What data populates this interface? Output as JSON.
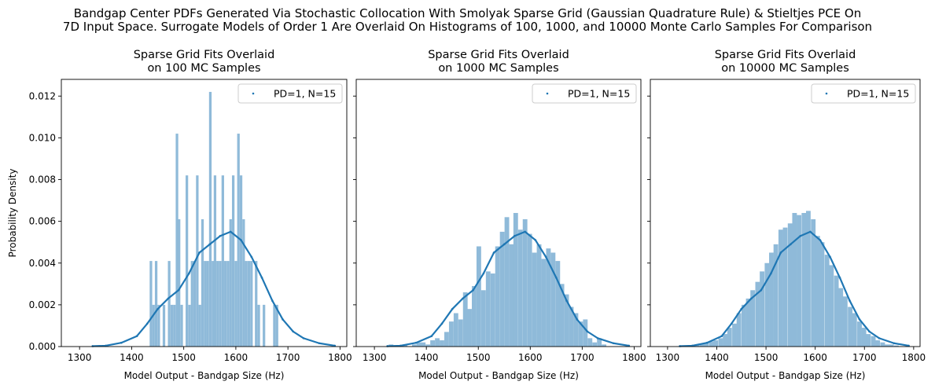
{
  "figure": {
    "suptitle_line1": "Bandgap Center PDFs Generated Via Stochastic Collocation With Smolyak Sparse Grid (Gaussian Quadrature Rule) & Stieltjes PCE On",
    "suptitle_line2": "7D Input Space. Surrogate Models of Order 1 Are Overlaid On Histograms of 100, 1000, and 10000 Monte Carlo Samples For Comparison"
  },
  "colors": {
    "hist": "#8fbad9",
    "curve": "#1f77b4",
    "axis": "#000000",
    "legend_border": "#cccccc"
  },
  "chart_data": [
    {
      "type": "bar",
      "title_line1": "Sparse Grid Fits Overlaid",
      "title_line2": "on 100 MC Samples",
      "xlabel": "Model Output - Bandgap Size (Hz)",
      "ylabel": "Probability Density",
      "xlim": [
        1265,
        1813
      ],
      "ylim": [
        0,
        0.0128
      ],
      "xticks": [
        1300,
        1400,
        1500,
        1600,
        1700,
        1800
      ],
      "yticks": [
        0.0,
        0.002,
        0.004,
        0.006,
        0.008,
        0.01,
        0.012
      ],
      "ytick_labels": [
        "0.000",
        "0.002",
        "0.004",
        "0.006",
        "0.008",
        "0.010",
        "0.012"
      ],
      "show_ytick_labels": true,
      "legend": {
        "label": "PD=1, N=15",
        "placement": "top-right"
      },
      "bin_width": 4.91,
      "bins": [
        {
          "x": 1437,
          "y": 0.0041
        },
        {
          "x": 1442,
          "y": 0.002
        },
        {
          "x": 1447,
          "y": 0.0041
        },
        {
          "x": 1452,
          "y": 0.002
        },
        {
          "x": 1462,
          "y": 0.002
        },
        {
          "x": 1472,
          "y": 0.0041
        },
        {
          "x": 1477,
          "y": 0.002
        },
        {
          "x": 1482,
          "y": 0.002
        },
        {
          "x": 1487,
          "y": 0.0102
        },
        {
          "x": 1491,
          "y": 0.0061
        },
        {
          "x": 1496,
          "y": 0.002
        },
        {
          "x": 1506,
          "y": 0.0082
        },
        {
          "x": 1511,
          "y": 0.002
        },
        {
          "x": 1516,
          "y": 0.0041
        },
        {
          "x": 1521,
          "y": 0.0041
        },
        {
          "x": 1526,
          "y": 0.0082
        },
        {
          "x": 1531,
          "y": 0.002
        },
        {
          "x": 1536,
          "y": 0.0061
        },
        {
          "x": 1541,
          "y": 0.0041
        },
        {
          "x": 1546,
          "y": 0.0041
        },
        {
          "x": 1551,
          "y": 0.0122
        },
        {
          "x": 1556,
          "y": 0.0041
        },
        {
          "x": 1560,
          "y": 0.0082
        },
        {
          "x": 1565,
          "y": 0.0041
        },
        {
          "x": 1570,
          "y": 0.0041
        },
        {
          "x": 1575,
          "y": 0.0082
        },
        {
          "x": 1580,
          "y": 0.0041
        },
        {
          "x": 1585,
          "y": 0.0041
        },
        {
          "x": 1590,
          "y": 0.0061
        },
        {
          "x": 1595,
          "y": 0.0082
        },
        {
          "x": 1600,
          "y": 0.0041
        },
        {
          "x": 1605,
          "y": 0.0102
        },
        {
          "x": 1610,
          "y": 0.0082
        },
        {
          "x": 1615,
          "y": 0.0061
        },
        {
          "x": 1620,
          "y": 0.0041
        },
        {
          "x": 1625,
          "y": 0.0041
        },
        {
          "x": 1630,
          "y": 0.0041
        },
        {
          "x": 1639,
          "y": 0.0041
        },
        {
          "x": 1644,
          "y": 0.002
        },
        {
          "x": 1654,
          "y": 0.002
        },
        {
          "x": 1674,
          "y": 0.002
        },
        {
          "x": 1679,
          "y": 0.002
        }
      ],
      "curve": {
        "x": [
          1325,
          1350,
          1380,
          1410,
          1430,
          1450,
          1470,
          1490,
          1510,
          1530,
          1550,
          1570,
          1590,
          1610,
          1630,
          1650,
          1670,
          1690,
          1710,
          1730,
          1760,
          1790
        ],
        "y": [
          2e-05,
          4e-05,
          0.00018,
          0.0005,
          0.0011,
          0.0018,
          0.0023,
          0.0027,
          0.0035,
          0.0045,
          0.0049,
          0.0053,
          0.0055,
          0.0051,
          0.0043,
          0.0033,
          0.0022,
          0.0013,
          0.00072,
          0.0004,
          0.00016,
          4e-05
        ]
      }
    },
    {
      "type": "bar",
      "title_line1": "Sparse Grid Fits Overlaid",
      "title_line2": "on 1000 MC Samples",
      "xlabel": "Model Output - Bandgap Size (Hz)",
      "ylabel": "",
      "xlim": [
        1265,
        1813
      ],
      "ylim": [
        0,
        0.0128
      ],
      "xticks": [
        1300,
        1400,
        1500,
        1600,
        1700,
        1800
      ],
      "yticks": [
        0.0,
        0.002,
        0.004,
        0.006,
        0.008,
        0.01,
        0.012
      ],
      "ytick_labels": [
        "",
        "",
        "",
        "",
        "",
        "",
        ""
      ],
      "show_ytick_labels": false,
      "legend": {
        "label": "PD=1, N=15",
        "placement": "top-right"
      },
      "bin_width": 8.9,
      "bins": [
        {
          "x": 1332,
          "y": 0.0001
        },
        {
          "x": 1359,
          "y": 0.0001
        },
        {
          "x": 1377,
          "y": 0.0001
        },
        {
          "x": 1386,
          "y": 0.0002
        },
        {
          "x": 1394,
          "y": 0.0002
        },
        {
          "x": 1403,
          "y": 0.0001
        },
        {
          "x": 1412,
          "y": 0.0003
        },
        {
          "x": 1421,
          "y": 0.0004
        },
        {
          "x": 1430,
          "y": 0.0003
        },
        {
          "x": 1439,
          "y": 0.0007
        },
        {
          "x": 1448,
          "y": 0.0012
        },
        {
          "x": 1457,
          "y": 0.0016
        },
        {
          "x": 1466,
          "y": 0.0013
        },
        {
          "x": 1475,
          "y": 0.0026
        },
        {
          "x": 1483,
          "y": 0.0018
        },
        {
          "x": 1492,
          "y": 0.0029
        },
        {
          "x": 1501,
          "y": 0.0048
        },
        {
          "x": 1510,
          "y": 0.0027
        },
        {
          "x": 1519,
          "y": 0.0036
        },
        {
          "x": 1528,
          "y": 0.0035
        },
        {
          "x": 1537,
          "y": 0.0048
        },
        {
          "x": 1546,
          "y": 0.0055
        },
        {
          "x": 1555,
          "y": 0.0062
        },
        {
          "x": 1564,
          "y": 0.0049
        },
        {
          "x": 1572,
          "y": 0.0064
        },
        {
          "x": 1581,
          "y": 0.0056
        },
        {
          "x": 1590,
          "y": 0.0061
        },
        {
          "x": 1599,
          "y": 0.0054
        },
        {
          "x": 1608,
          "y": 0.0045
        },
        {
          "x": 1617,
          "y": 0.0049
        },
        {
          "x": 1626,
          "y": 0.0042
        },
        {
          "x": 1635,
          "y": 0.0047
        },
        {
          "x": 1644,
          "y": 0.0045
        },
        {
          "x": 1653,
          "y": 0.0041
        },
        {
          "x": 1661,
          "y": 0.003
        },
        {
          "x": 1670,
          "y": 0.0025
        },
        {
          "x": 1679,
          "y": 0.0019
        },
        {
          "x": 1688,
          "y": 0.0016
        },
        {
          "x": 1697,
          "y": 0.0012
        },
        {
          "x": 1706,
          "y": 0.0013
        },
        {
          "x": 1715,
          "y": 0.0004
        },
        {
          "x": 1724,
          "y": 0.0002
        },
        {
          "x": 1733,
          "y": 0.0004
        },
        {
          "x": 1742,
          "y": 0.0001
        }
      ],
      "curve": {
        "x": [
          1325,
          1350,
          1380,
          1410,
          1430,
          1450,
          1470,
          1490,
          1510,
          1530,
          1550,
          1570,
          1590,
          1610,
          1630,
          1650,
          1670,
          1690,
          1710,
          1730,
          1760,
          1790
        ],
        "y": [
          2e-05,
          4e-05,
          0.00018,
          0.0005,
          0.0011,
          0.0018,
          0.0023,
          0.0027,
          0.0035,
          0.0045,
          0.0049,
          0.0053,
          0.0055,
          0.0051,
          0.0043,
          0.0033,
          0.0022,
          0.0013,
          0.00072,
          0.0004,
          0.00016,
          4e-05
        ]
      }
    },
    {
      "type": "bar",
      "title_line1": "Sparse Grid Fits Overlaid",
      "title_line2": "on 10000 MC Samples",
      "xlabel": "Model Output - Bandgap Size (Hz)",
      "ylabel": "",
      "xlim": [
        1265,
        1813
      ],
      "ylim": [
        0,
        0.0128
      ],
      "xticks": [
        1300,
        1400,
        1500,
        1600,
        1700,
        1800
      ],
      "yticks": [
        0.0,
        0.002,
        0.004,
        0.006,
        0.008,
        0.01,
        0.012
      ],
      "ytick_labels": [
        "",
        "",
        "",
        "",
        "",
        "",
        ""
      ],
      "show_ytick_labels": false,
      "legend": {
        "label": "PD=1, N=15",
        "placement": "top-right"
      },
      "bin_width": 9.4,
      "bins": [
        {
          "x": 1323,
          "y": 2e-05
        },
        {
          "x": 1332,
          "y": 2e-05
        },
        {
          "x": 1342,
          "y": 4e-05
        },
        {
          "x": 1351,
          "y": 5e-05
        },
        {
          "x": 1360,
          "y": 8e-05
        },
        {
          "x": 1370,
          "y": 0.00012
        },
        {
          "x": 1379,
          "y": 0.00018
        },
        {
          "x": 1389,
          "y": 0.00025
        },
        {
          "x": 1398,
          "y": 0.0003
        },
        {
          "x": 1408,
          "y": 0.0004
        },
        {
          "x": 1417,
          "y": 0.0006
        },
        {
          "x": 1426,
          "y": 0.0009
        },
        {
          "x": 1436,
          "y": 0.0011
        },
        {
          "x": 1445,
          "y": 0.0016
        },
        {
          "x": 1455,
          "y": 0.002
        },
        {
          "x": 1464,
          "y": 0.0023
        },
        {
          "x": 1473,
          "y": 0.0027
        },
        {
          "x": 1483,
          "y": 0.0031
        },
        {
          "x": 1492,
          "y": 0.0036
        },
        {
          "x": 1502,
          "y": 0.004
        },
        {
          "x": 1511,
          "y": 0.0045
        },
        {
          "x": 1520,
          "y": 0.0049
        },
        {
          "x": 1530,
          "y": 0.0056
        },
        {
          "x": 1539,
          "y": 0.0057
        },
        {
          "x": 1549,
          "y": 0.0059
        },
        {
          "x": 1558,
          "y": 0.0064
        },
        {
          "x": 1567,
          "y": 0.0063
        },
        {
          "x": 1577,
          "y": 0.0064
        },
        {
          "x": 1586,
          "y": 0.0065
        },
        {
          "x": 1596,
          "y": 0.0061
        },
        {
          "x": 1605,
          "y": 0.0053
        },
        {
          "x": 1614,
          "y": 0.005
        },
        {
          "x": 1624,
          "y": 0.0044
        },
        {
          "x": 1633,
          "y": 0.0039
        },
        {
          "x": 1643,
          "y": 0.0034
        },
        {
          "x": 1652,
          "y": 0.0028
        },
        {
          "x": 1661,
          "y": 0.0024
        },
        {
          "x": 1671,
          "y": 0.0019
        },
        {
          "x": 1680,
          "y": 0.0016
        },
        {
          "x": 1690,
          "y": 0.0012
        },
        {
          "x": 1699,
          "y": 0.0009
        },
        {
          "x": 1708,
          "y": 0.0006
        },
        {
          "x": 1718,
          "y": 0.0005
        },
        {
          "x": 1727,
          "y": 0.0003
        },
        {
          "x": 1737,
          "y": 0.0002
        },
        {
          "x": 1746,
          "y": 0.0001
        },
        {
          "x": 1755,
          "y": 0.0001
        },
        {
          "x": 1765,
          "y": 5e-05
        }
      ],
      "curve": {
        "x": [
          1325,
          1350,
          1380,
          1410,
          1430,
          1450,
          1470,
          1490,
          1510,
          1530,
          1550,
          1570,
          1590,
          1610,
          1630,
          1650,
          1670,
          1690,
          1710,
          1730,
          1760,
          1790
        ],
        "y": [
          2e-05,
          4e-05,
          0.00018,
          0.0005,
          0.0011,
          0.0018,
          0.0023,
          0.0027,
          0.0035,
          0.0045,
          0.0049,
          0.0053,
          0.0055,
          0.0051,
          0.0043,
          0.0033,
          0.0022,
          0.0013,
          0.00072,
          0.0004,
          0.00016,
          4e-05
        ]
      }
    }
  ]
}
